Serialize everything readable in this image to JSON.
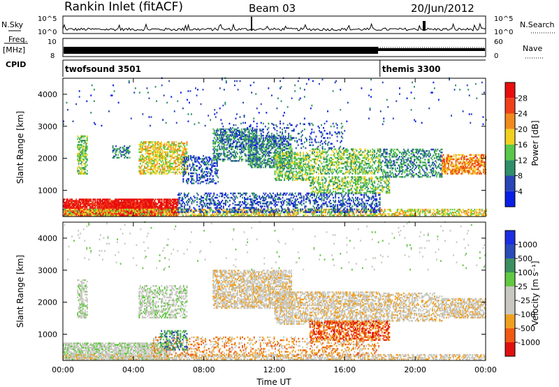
{
  "header": {
    "station": "Rankin Inlet (fitACF)",
    "beam": "Beam 03",
    "date": "20/Jun/2012"
  },
  "labels": {
    "nsky": "N.Sky",
    "nsearch": "N.Search",
    "freq": "Freq.",
    "mhz": "[MHz]",
    "nave": "Nave",
    "cpid": "CPID",
    "noise_tick_top": "10^5",
    "noise_tick_bottom": "10^0",
    "freq_tick_top": "10",
    "freq_tick_bottom": "8",
    "nave_tick_top": "60",
    "nave_tick_bottom": "0"
  },
  "cpid_segments": [
    {
      "label": "twofsound 3501",
      "start_hour": 0
    },
    {
      "label": "themis 3300",
      "start_hour": 18.0
    }
  ],
  "chart_data": [
    {
      "type": "heatmap",
      "name": "power-panel",
      "ylabel": "Slant Range [km]",
      "xlabel": "",
      "x_unit": "hours UT",
      "xlim": [
        0,
        24
      ],
      "ylim": [
        180,
        4500
      ],
      "yticks": [
        1000,
        2000,
        3000,
        4000
      ],
      "xticks": [
        0,
        4,
        8,
        12,
        16,
        20,
        24
      ],
      "colorbar": {
        "label": "Power [dB]",
        "ticks": [
          "4",
          "8",
          "12",
          "16",
          "20",
          "24",
          "28"
        ],
        "colors": [
          "#0a1ee6",
          "#2a45b8",
          "#2f8f6a",
          "#5ac84a",
          "#f0d020",
          "#f08a1e",
          "#f0401a",
          "#e80e0e"
        ]
      },
      "echo_regions": [
        {
          "t0": 0.0,
          "t1": 6.5,
          "r0": 200,
          "r1": 700,
          "level": 7,
          "density": 0.85
        },
        {
          "t0": 2.0,
          "t1": 5.2,
          "r0": 200,
          "r1": 650,
          "level": 7,
          "density": 0.95
        },
        {
          "t0": 0.0,
          "t1": 24.0,
          "r0": 200,
          "r1": 400,
          "level": 4,
          "density": 0.5
        },
        {
          "t0": 6.5,
          "t1": 18.0,
          "r0": 300,
          "r1": 900,
          "level": 1,
          "density": 0.35
        },
        {
          "t0": 0.8,
          "t1": 1.4,
          "r0": 1500,
          "r1": 2700,
          "level": 3,
          "density": 0.55
        },
        {
          "t0": 2.8,
          "t1": 3.8,
          "r0": 2000,
          "r1": 2400,
          "level": 2,
          "density": 0.4
        },
        {
          "t0": 4.3,
          "t1": 7.0,
          "r0": 1500,
          "r1": 2500,
          "level": 4,
          "density": 0.55
        },
        {
          "t0": 6.8,
          "t1": 8.8,
          "r0": 1200,
          "r1": 2100,
          "level": 1,
          "density": 0.35
        },
        {
          "t0": 8.5,
          "t1": 11.0,
          "r0": 1900,
          "r1": 2900,
          "level": 2,
          "density": 0.45
        },
        {
          "t0": 10.5,
          "t1": 13.0,
          "r0": 1700,
          "r1": 2700,
          "level": 2,
          "density": 0.5
        },
        {
          "t0": 12.0,
          "t1": 14.0,
          "r0": 1300,
          "r1": 2200,
          "level": 3,
          "density": 0.5
        },
        {
          "t0": 14.0,
          "t1": 18.0,
          "r0": 1500,
          "r1": 2300,
          "level": 3,
          "density": 0.45
        },
        {
          "t0": 14.0,
          "t1": 18.5,
          "r0": 900,
          "r1": 1400,
          "level": 3,
          "density": 0.45
        },
        {
          "t0": 18.0,
          "t1": 21.5,
          "r0": 1400,
          "r1": 2300,
          "level": 2,
          "density": 0.4
        },
        {
          "t0": 21.5,
          "t1": 24.0,
          "r0": 1500,
          "r1": 2100,
          "level": 5,
          "density": 0.6
        },
        {
          "t0": 9.0,
          "t1": 16.0,
          "r0": 2300,
          "r1": 3100,
          "level": 1,
          "density": 0.15
        },
        {
          "t0": 0.0,
          "t1": 24.0,
          "r0": 3000,
          "r1": 4500,
          "level": 1,
          "density": 0.015
        }
      ]
    },
    {
      "type": "heatmap",
      "name": "velocity-panel",
      "ylabel": "Slant Range [km]",
      "xlabel": "Time UT",
      "x_unit": "hours UT",
      "xlim": [
        0,
        24
      ],
      "ylim": [
        180,
        4500
      ],
      "yticks": [
        1000,
        2000,
        3000,
        4000
      ],
      "xticks": [
        0,
        4,
        8,
        12,
        16,
        20,
        24
      ],
      "xticklabels": [
        "00:00",
        "04:00",
        "08:00",
        "12:00",
        "16:00",
        "20:00",
        "00:00"
      ],
      "colorbar": {
        "label": "Velocity [m s⁻¹]",
        "ticks": [
          "-1000",
          "-500",
          "-100",
          "-25",
          "25",
          "100",
          "500",
          "1000"
        ],
        "colors": [
          "#e01010",
          "#f05a14",
          "#f0a020",
          "#c8c8c0",
          "#c8c8c0",
          "#62c842",
          "#3c8f60",
          "#2a4bb8",
          "#1c2ee0"
        ]
      },
      "echo_regions": [
        {
          "t0": 0.0,
          "t1": 6.0,
          "r0": 200,
          "r1": 700,
          "level": 4,
          "density": 0.7
        },
        {
          "t0": 0.0,
          "t1": 24.0,
          "r0": 200,
          "r1": 380,
          "level": 3,
          "density": 0.55
        },
        {
          "t0": 5.0,
          "t1": 18.0,
          "r0": 300,
          "r1": 900,
          "level": 2,
          "density": 0.25
        },
        {
          "t0": 0.8,
          "t1": 1.4,
          "r0": 1500,
          "r1": 2700,
          "level": 4,
          "density": 0.5
        },
        {
          "t0": 4.3,
          "t1": 7.0,
          "r0": 1500,
          "r1": 2500,
          "level": 4,
          "density": 0.45
        },
        {
          "t0": 8.5,
          "t1": 13.0,
          "r0": 1800,
          "r1": 3000,
          "level": 3,
          "density": 0.6
        },
        {
          "t0": 12.0,
          "t1": 18.0,
          "r0": 1300,
          "r1": 2300,
          "level": 3,
          "density": 0.55
        },
        {
          "t0": 14.0,
          "t1": 18.5,
          "r0": 800,
          "r1": 1400,
          "level": 1,
          "density": 0.5
        },
        {
          "t0": 18.0,
          "t1": 21.5,
          "r0": 1400,
          "r1": 2300,
          "level": 3,
          "density": 0.45
        },
        {
          "t0": 21.5,
          "t1": 24.0,
          "r0": 1500,
          "r1": 2100,
          "level": 3,
          "density": 0.6
        },
        {
          "t0": 5.5,
          "t1": 7.0,
          "r0": 500,
          "r1": 1100,
          "level": 6,
          "density": 0.4
        },
        {
          "t0": 0.0,
          "t1": 24.0,
          "r0": 3000,
          "r1": 4500,
          "level": 4,
          "density": 0.015
        }
      ]
    }
  ]
}
